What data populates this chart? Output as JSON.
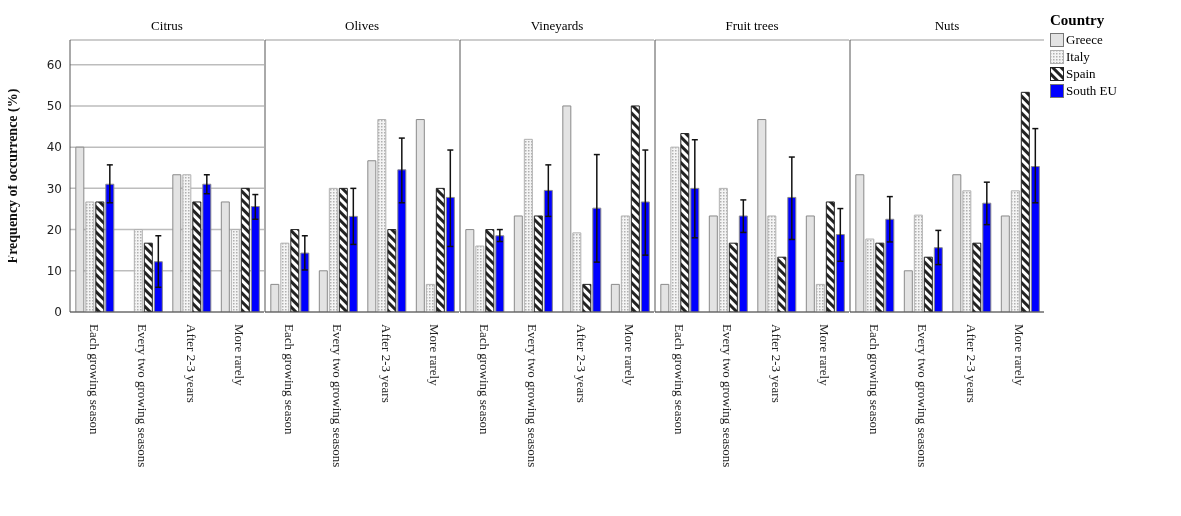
{
  "chart_data": [
    {
      "type": "bar",
      "title": "Citrus",
      "ylabel": "Frequency of occurrence (%)",
      "categories": [
        "Each growing season",
        "Every two growing seasons",
        "After 2-3 years",
        "More rarely"
      ],
      "ylim": [
        0,
        66
      ],
      "yticks": [
        0,
        10,
        20,
        30,
        40,
        50,
        60
      ],
      "grid": "y",
      "series": [
        {
          "color": "#e3e3e3",
          "values": [
            40,
            0,
            33.3,
            26.7
          ]
        },
        {
          "color": "#b0b0b0",
          "values": [
            26.7,
            20,
            33.3,
            20
          ]
        },
        {
          "color": "#222222",
          "values": [
            26.7,
            16.7,
            26.7,
            30
          ]
        },
        {
          "color": "#0000ff",
          "values": [
            31,
            12.2,
            31,
            25.6
          ],
          "errors": [
            [
              26.5,
              35.7
            ],
            [
              6,
              18.5
            ],
            [
              28.7,
              33.3
            ],
            [
              22.5,
              28.5
            ]
          ]
        }
      ]
    },
    {
      "type": "bar",
      "title": "Olives",
      "categories": [
        "Each growing season",
        "Every two growing seasons",
        "After 2-3 years",
        "More rarely"
      ],
      "ylim": [
        0,
        66
      ],
      "yticks": [
        0,
        10,
        20,
        30,
        40,
        50,
        60
      ],
      "grid": "y",
      "tick_labels": "x",
      "series": [
        {
          "color": "#e3e3e3",
          "values": [
            6.7,
            10,
            36.7,
            46.7
          ]
        },
        {
          "color": "#b0b0b0",
          "values": [
            16.7,
            30,
            46.7,
            6.7
          ]
        },
        {
          "color": "#222222",
          "values": [
            20,
            30,
            20,
            30
          ]
        },
        {
          "color": "#0000ff",
          "values": [
            14.3,
            23.2,
            34.5,
            27.8
          ],
          "errors": [
            [
              10.2,
              18.5
            ],
            [
              16.4,
              30
            ],
            [
              26.5,
              42.2
            ],
            [
              15.9,
              39.3
            ]
          ]
        }
      ]
    },
    {
      "type": "bar",
      "title": "Vineyards",
      "categories": [
        "Each growing season",
        "Every two growing seasons",
        "After 2-3 years",
        "More rarely"
      ],
      "ylim": [
        0,
        66
      ],
      "yticks": [
        0,
        10,
        20,
        30,
        40,
        50,
        60
      ],
      "grid": "y",
      "tick_labels": "x",
      "series": [
        {
          "color": "#e3e3e3",
          "values": [
            20,
            23.3,
            50,
            6.7
          ]
        },
        {
          "color": "#b0b0b0",
          "values": [
            16,
            41.9,
            19.2,
            23.3
          ]
        },
        {
          "color": "#222222",
          "values": [
            20,
            23.3,
            6.7,
            50
          ]
        },
        {
          "color": "#0000ff",
          "values": [
            18.5,
            29.5,
            25.2,
            26.7
          ],
          "errors": [
            [
              17.1,
              20
            ],
            [
              23.2,
              35.7
            ],
            [
              12.1,
              38.2
            ],
            [
              13.8,
              39.3
            ]
          ]
        }
      ]
    },
    {
      "type": "bar",
      "title": "Fruit trees",
      "categories": [
        "Each growing season",
        "Every two growing seasons",
        "After 2-3 years",
        "More rarely"
      ],
      "ylim": [
        0,
        66
      ],
      "yticks": [
        0,
        10,
        20,
        30,
        40,
        50,
        60
      ],
      "grid": "y",
      "tick_labels": "x",
      "series": [
        {
          "color": "#e3e3e3",
          "values": [
            6.7,
            23.3,
            46.7,
            23.3
          ]
        },
        {
          "color": "#b0b0b0",
          "values": [
            40,
            30,
            23.3,
            6.7
          ]
        },
        {
          "color": "#222222",
          "values": [
            43.3,
            16.7,
            13.3,
            26.7
          ]
        },
        {
          "color": "#0000ff",
          "values": [
            30,
            23.3,
            27.8,
            18.8
          ],
          "errors": [
            [
              18,
              41.8
            ],
            [
              19.3,
              27.2
            ],
            [
              17.6,
              37.6
            ],
            [
              12.3,
              25.1
            ]
          ]
        }
      ]
    },
    {
      "type": "bar",
      "title": "Nuts",
      "categories": [
        "Each growing season",
        "Every two growing seasons",
        "After 2-3 years",
        "More rarely"
      ],
      "ylim": [
        0,
        66
      ],
      "yticks": [
        0,
        10,
        20,
        30,
        40,
        50,
        60
      ],
      "grid": "y",
      "tick_labels": "x",
      "legend": "right",
      "legend_title": "Country",
      "series": [
        {
          "name": "Greece",
          "color": "#e3e3e3",
          "values": [
            33.3,
            10,
            33.3,
            23.3
          ]
        },
        {
          "name": "Italy",
          "color": "#b0b0b0",
          "values": [
            17.7,
            23.5,
            29.4,
            29.4
          ]
        },
        {
          "name": "Spain",
          "color": "#222222",
          "values": [
            16.7,
            13.3,
            16.7,
            53.3
          ]
        },
        {
          "name": "South EU",
          "color": "#0000ff",
          "values": [
            22.5,
            15.6,
            26.4,
            35.3
          ],
          "errors": [
            [
              17,
              28
            ],
            [
              11.5,
              19.8
            ],
            [
              21.2,
              31.5
            ],
            [
              26.5,
              44.5
            ]
          ]
        }
      ]
    }
  ]
}
